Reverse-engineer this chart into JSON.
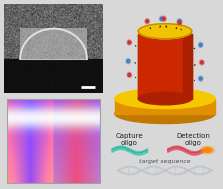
{
  "bg_color": "#d8d8d8",
  "sem_bg": "#1a1a1a",
  "sem_scalebar_color": "#ffffff",
  "capture_oligo_color": "#40c8b0",
  "detection_oligo_color": "#e05060",
  "fluorophore_color": "#ff8800",
  "target_sequence_color": "#b8c0c8",
  "label_capture": "Capture\noligo",
  "label_detection": "Detection\noligo",
  "label_target": "target sequence",
  "font_size_labels": 5.0,
  "font_size_target": 4.5,
  "cylinder_yellow": "#f5c800",
  "cylinder_red": "#cc2800",
  "cylinder_dark_red": "#882000",
  "cylinder_orange": "#e08000"
}
